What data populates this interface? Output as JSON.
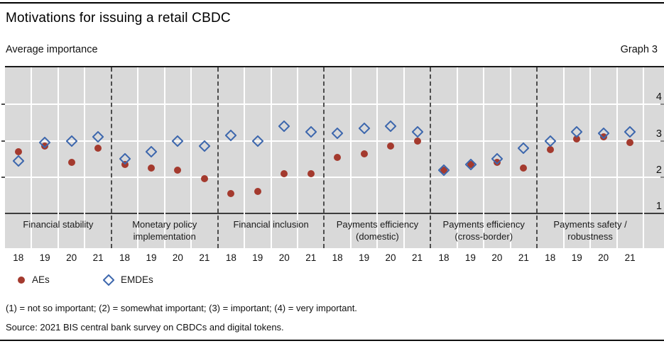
{
  "header": {
    "title": "Motivations for issuing a retail CBDC",
    "subtitle": "Average importance",
    "graph_label": "Graph 3"
  },
  "chart_data": {
    "type": "scatter",
    "title": "Motivations for issuing a retail CBDC",
    "ylabel": "Average importance",
    "y_axis": {
      "ticks": [
        4,
        3,
        2,
        1
      ],
      "min": 1,
      "max": 5.02,
      "grid": true
    },
    "years": [
      "18",
      "19",
      "20",
      "21"
    ],
    "series_meta": [
      {
        "name": "AEs",
        "marker": "circle",
        "color": "#a43a2e"
      },
      {
        "name": "EMDEs",
        "marker": "diamond",
        "color": "#3d67ad"
      }
    ],
    "sections": [
      {
        "label_lines": [
          "Financial stability"
        ],
        "AEs": [
          2.7,
          2.85,
          2.4,
          2.8
        ],
        "EMDEs": [
          2.45,
          2.95,
          3.0,
          3.1
        ]
      },
      {
        "label_lines": [
          "Monetary policy",
          "implementation"
        ],
        "AEs": [
          2.35,
          2.25,
          2.2,
          1.95
        ],
        "EMDEs": [
          2.5,
          2.7,
          3.0,
          2.85
        ]
      },
      {
        "label_lines": [
          "Financial inclusion"
        ],
        "AEs": [
          1.55,
          1.6,
          2.1,
          2.1
        ],
        "EMDEs": [
          3.15,
          3.0,
          3.4,
          3.25
        ]
      },
      {
        "label_lines": [
          "Payments efficiency",
          "(domestic)"
        ],
        "AEs": [
          2.55,
          2.65,
          2.85,
          3.0
        ],
        "EMDEs": [
          3.2,
          3.35,
          3.4,
          3.25
        ]
      },
      {
        "label_lines": [
          "Payments efficiency",
          "(cross-border)"
        ],
        "AEs": [
          2.2,
          2.35,
          2.4,
          2.25
        ],
        "EMDEs": [
          2.2,
          2.35,
          2.5,
          2.8
        ]
      },
      {
        "label_lines": [
          "Payments safety /",
          "robustness"
        ],
        "AEs": [
          2.75,
          3.05,
          3.1,
          2.95
        ],
        "EMDEs": [
          3.0,
          3.25,
          3.2,
          3.25
        ]
      }
    ]
  },
  "legend": {
    "items": [
      {
        "label": "AEs"
      },
      {
        "label": "EMDEs"
      }
    ]
  },
  "footnotes": {
    "scale_note": "(1) = not so important; (2) = somewhat important; (3) = important; (4) = very important.",
    "source": "Source: 2021 BIS central bank survey on CBDCs and digital tokens."
  },
  "colors": {
    "plot_background": "#d9d9d9",
    "gridline": "#ffffff",
    "separator": "#4d4d4d",
    "aes": "#a43a2e",
    "emdes": "#3d67ad"
  }
}
